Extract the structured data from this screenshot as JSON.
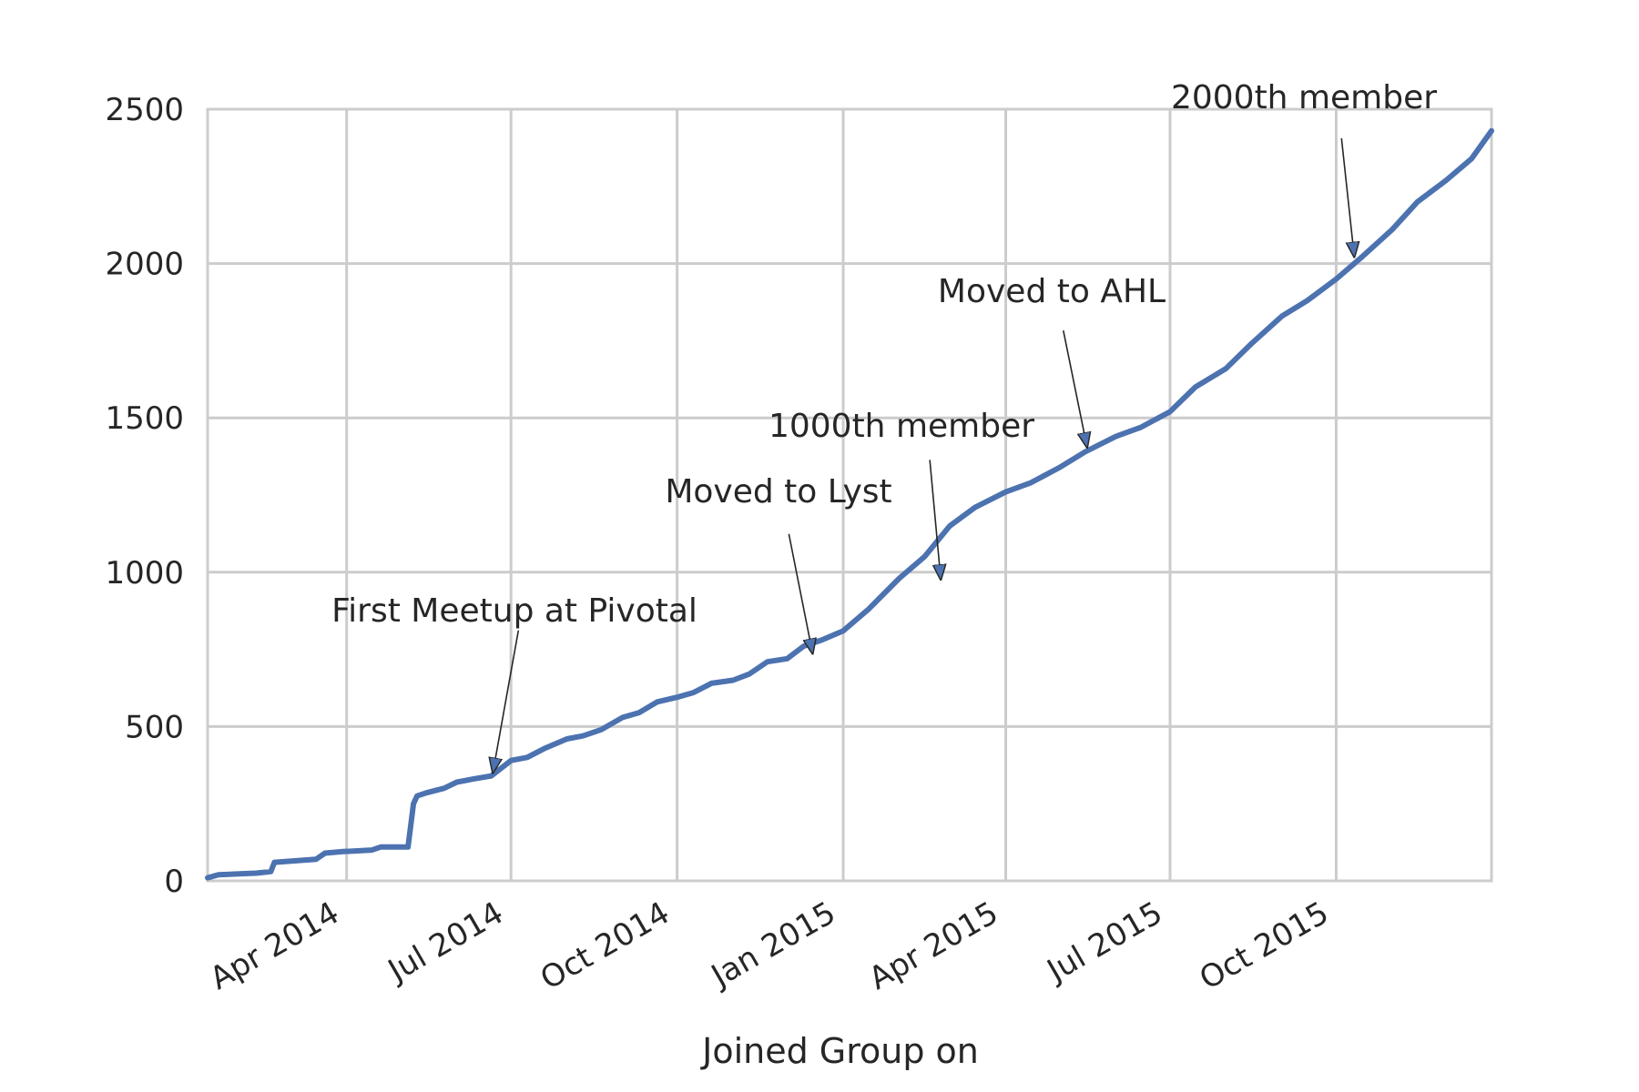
{
  "chart_data": {
    "type": "line",
    "title": "",
    "xlabel": "Joined Group on",
    "ylabel": "",
    "x_range": [
      "2014-01-14",
      "2015-12-26"
    ],
    "ylim": [
      0,
      2500
    ],
    "y_ticks": [
      0,
      500,
      1000,
      1500,
      2000,
      2500
    ],
    "x_ticks": [
      {
        "date": "2014-04-01",
        "label": "Apr 2014"
      },
      {
        "date": "2014-07-01",
        "label": "Jul 2014"
      },
      {
        "date": "2014-10-01",
        "label": "Oct 2014"
      },
      {
        "date": "2015-01-01",
        "label": "Jan 2015"
      },
      {
        "date": "2015-04-01",
        "label": "Apr 2015"
      },
      {
        "date": "2015-07-01",
        "label": "Jul 2015"
      },
      {
        "date": "2015-10-01",
        "label": "Oct 2015"
      }
    ],
    "grid": true,
    "line_color": "#4c72b0",
    "series": [
      {
        "x": [
          "2014-01-14",
          "2014-01-20",
          "2014-02-10",
          "2014-02-18",
          "2014-02-20",
          "2014-03-15",
          "2014-03-20",
          "2014-03-30",
          "2014-04-15",
          "2014-04-20",
          "2014-05-05",
          "2014-05-08",
          "2014-05-10",
          "2014-05-15",
          "2014-05-25",
          "2014-06-01",
          "2014-06-10",
          "2014-06-20",
          "2014-07-01",
          "2014-07-10",
          "2014-07-20",
          "2014-08-01",
          "2014-08-10",
          "2014-08-20",
          "2014-09-01",
          "2014-09-10",
          "2014-09-20",
          "2014-10-01",
          "2014-10-10",
          "2014-10-20",
          "2014-11-01",
          "2014-11-10",
          "2014-11-20",
          "2014-12-01",
          "2014-12-10",
          "2014-12-20",
          "2015-01-01",
          "2015-01-15",
          "2015-02-01",
          "2015-02-15",
          "2015-03-01",
          "2015-03-15",
          "2015-04-01",
          "2015-04-15",
          "2015-05-01",
          "2015-05-15",
          "2015-06-01",
          "2015-06-15",
          "2015-07-01",
          "2015-07-15",
          "2015-08-01",
          "2015-08-15",
          "2015-09-01",
          "2015-09-15",
          "2015-10-01",
          "2015-10-15",
          "2015-11-01",
          "2015-11-15",
          "2015-12-01",
          "2015-12-15",
          "2015-12-26"
        ],
        "y": [
          10,
          20,
          25,
          30,
          60,
          70,
          90,
          95,
          100,
          110,
          110,
          250,
          275,
          285,
          300,
          320,
          330,
          340,
          390,
          400,
          430,
          460,
          470,
          490,
          530,
          545,
          580,
          595,
          610,
          640,
          650,
          670,
          710,
          720,
          760,
          780,
          810,
          880,
          980,
          1050,
          1150,
          1210,
          1260,
          1290,
          1340,
          1390,
          1440,
          1470,
          1520,
          1600,
          1660,
          1740,
          1830,
          1880,
          1950,
          2020,
          2110,
          2200,
          2270,
          2340,
          2430
        ]
      }
    ],
    "annotations": [
      {
        "text": "First Meetup at Pivotal",
        "date": "2014-06-21",
        "value": 334
      },
      {
        "text": "Moved to Lyst",
        "date": "2014-12-15",
        "value": 720
      },
      {
        "text": "1000th member",
        "date": "2015-02-24",
        "value": 960
      },
      {
        "text": "Moved to AHL",
        "date": "2015-05-16",
        "value": 1388
      },
      {
        "text": "2000th member",
        "date": "2015-10-11",
        "value": 2005
      }
    ]
  }
}
